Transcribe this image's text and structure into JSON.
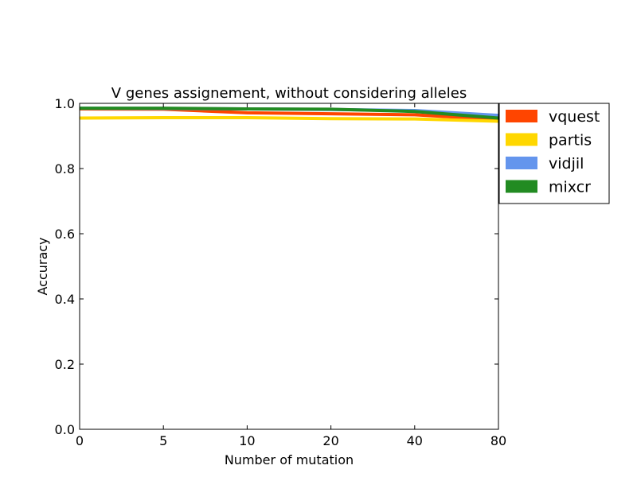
{
  "chart_data": {
    "type": "line",
    "title": "V genes assignement, without considering alleles",
    "xlabel": "Number of mutation",
    "ylabel": "Accuracy",
    "categories": [
      "0",
      "5",
      "10",
      "20",
      "40",
      "80"
    ],
    "ylim": [
      0.0,
      1.0
    ],
    "yticks": [
      "0.0",
      "0.2",
      "0.4",
      "0.6",
      "0.8",
      "1.0"
    ],
    "grid": false,
    "legend_position": "outside-right",
    "series": [
      {
        "name": "vquest",
        "color": "#FF4500",
        "values": [
          0.983,
          0.982,
          0.971,
          0.968,
          0.965,
          0.95
        ]
      },
      {
        "name": "partis",
        "color": "#FFD700",
        "values": [
          0.955,
          0.956,
          0.956,
          0.953,
          0.952,
          0.945
        ]
      },
      {
        "name": "vidjil",
        "color": "#6495ED",
        "values": [
          0.985,
          0.984,
          0.983,
          0.981,
          0.978,
          0.963
        ]
      },
      {
        "name": "mixcr",
        "color": "#228B22",
        "values": [
          0.985,
          0.985,
          0.983,
          0.982,
          0.975,
          0.955
        ]
      }
    ]
  }
}
